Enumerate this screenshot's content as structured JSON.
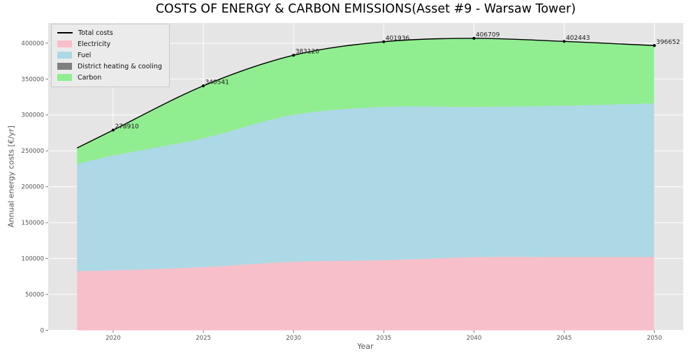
{
  "title": "COSTS OF ENERGY & CARBON EMISSIONS(Asset #9 - Warsaw Tower)",
  "axes": {
    "xlabel": "Year",
    "ylabel": "Annual energy costs [€/yr]"
  },
  "legend": {
    "position": "upper left",
    "entries": [
      {
        "label": "Total costs",
        "swatch": "line",
        "color": "#000000"
      },
      {
        "label": "Electricity",
        "swatch": "patch",
        "color": "#f7bfc9"
      },
      {
        "label": "Fuel",
        "swatch": "patch",
        "color": "#add8e6"
      },
      {
        "label": "District heating & cooling",
        "swatch": "patch",
        "color": "#7f7f7f"
      },
      {
        "label": "Carbon",
        "swatch": "patch",
        "color": "#90ee90"
      }
    ]
  },
  "chart_data": {
    "type": "area",
    "stacked": true,
    "title": "COSTS OF ENERGY & CARBON EMISSIONS(Asset #9 - Warsaw Tower)",
    "xlabel": "Year",
    "ylabel": "Annual energy costs [€/yr]",
    "x": [
      2018,
      2020,
      2025,
      2030,
      2035,
      2040,
      2045,
      2050
    ],
    "series": [
      {
        "name": "Electricity",
        "color": "#f7bfc9",
        "values": [
          82500,
          83500,
          88000,
          95400,
          97600,
          101900,
          102000,
          102000
        ]
      },
      {
        "name": "Fuel",
        "color": "#add8e6",
        "values": [
          149100,
          159800,
          179600,
          204600,
          213500,
          209200,
          210700,
          214000
        ]
      },
      {
        "name": "District heating & cooling",
        "color": "#7f7f7f",
        "values": [
          0,
          0,
          0,
          0,
          0,
          0,
          0,
          0
        ]
      },
      {
        "name": "Carbon",
        "color": "#90ee90",
        "values": [
          22400,
          35610,
          72941,
          83120,
          90836,
          95609,
          89743,
          80652
        ]
      }
    ],
    "total_line": {
      "name": "Total costs",
      "color": "#000000",
      "values": [
        254000,
        278910,
        340541,
        383120,
        401936,
        406709,
        402443,
        396652
      ]
    },
    "point_labels": [
      {
        "x": 2020,
        "value": 278910,
        "label": "278910"
      },
      {
        "x": 2025,
        "value": 340541,
        "label": "340541"
      },
      {
        "x": 2030,
        "value": 383120,
        "label": "383120"
      },
      {
        "x": 2035,
        "value": 401936,
        "label": "401936"
      },
      {
        "x": 2040,
        "value": 406709,
        "label": "406709"
      },
      {
        "x": 2045,
        "value": 402443,
        "label": "402443"
      },
      {
        "x": 2050,
        "value": 396652,
        "label": "396652"
      }
    ],
    "xticks": [
      2020,
      2025,
      2030,
      2035,
      2040,
      2045,
      2050
    ],
    "yticks": [
      0,
      50000,
      100000,
      150000,
      200000,
      250000,
      300000,
      350000,
      400000
    ],
    "xlim": [
      2016.4,
      2051.6
    ],
    "ylim": [
      0,
      428000
    ],
    "grid": true,
    "plot_bg": "#e5e5e5",
    "grid_color": "#ffffff",
    "tick_color": "#555555",
    "label_color": "#1a1a1a"
  }
}
